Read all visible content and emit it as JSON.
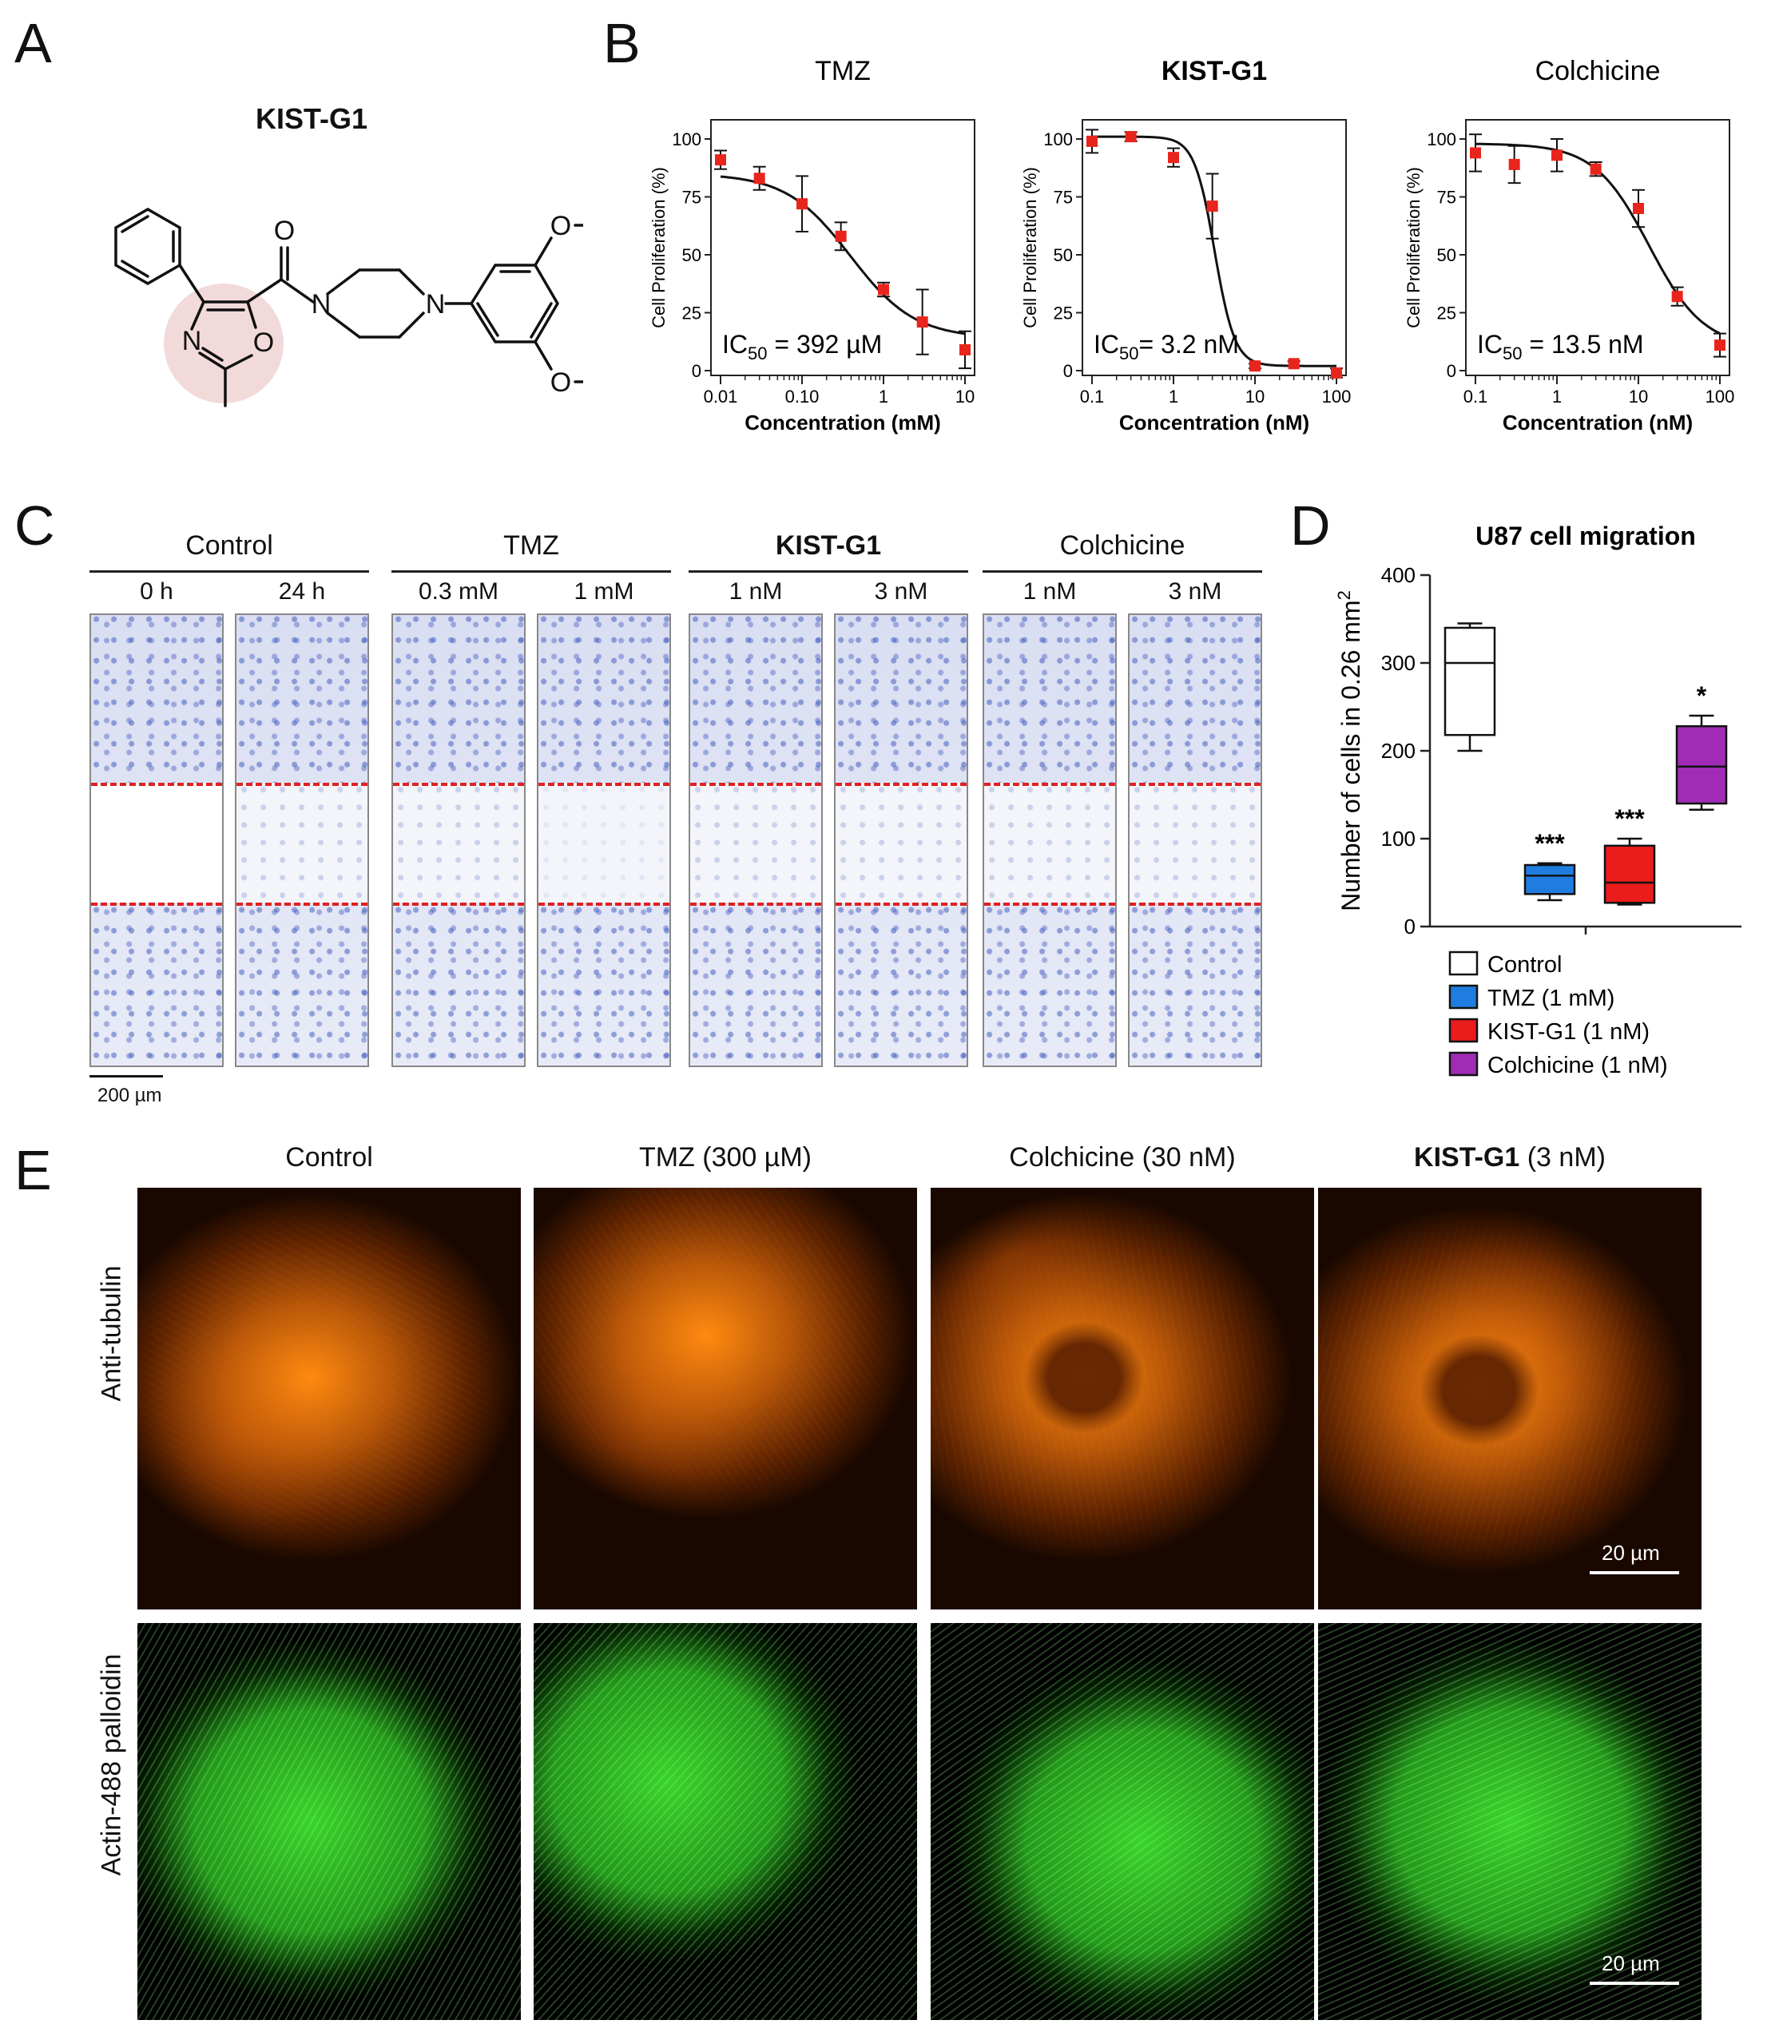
{
  "panels": {
    "A": "A",
    "B": "B",
    "C": "C",
    "D": "D",
    "E": "E"
  },
  "panelA": {
    "compound": "KIST-G1",
    "atoms": {
      "O_carbonyl": "O",
      "N_pip1": "N",
      "N_pip2": "N",
      "N_ox": "N",
      "O_ox": "O",
      "O_ome1": "O",
      "O_ome2": "O"
    }
  },
  "panelB": {
    "charts": [
      {
        "title": "TMZ",
        "title_bold": false,
        "ylabel": "Cell Proliferation (%)",
        "xlabel": "Concentration (mM)",
        "ic50_pre": "IC",
        "ic50_sub": "50",
        "ic50_post": " = 392 µM"
      },
      {
        "title": "KIST-G1",
        "title_bold": true,
        "ylabel": "Cell Proliferation (%)",
        "xlabel": "Concentration (nM)",
        "ic50_pre": "IC",
        "ic50_sub": "50",
        "ic50_post": "= 3.2 nM"
      },
      {
        "title": "Colchicine",
        "title_bold": false,
        "ylabel": "Cell Proliferation (%)",
        "xlabel": "Concentration (nM)",
        "ic50_pre": "IC",
        "ic50_sub": "50",
        "ic50_post": " = 13.5 nM"
      }
    ]
  },
  "panelC": {
    "groups": [
      {
        "label": "Control",
        "bold": false,
        "subs": [
          "0 h",
          "24 h"
        ]
      },
      {
        "label": "TMZ",
        "bold": false,
        "subs": [
          "0.3 mM",
          "1 mM"
        ]
      },
      {
        "label": "KIST-G1",
        "bold": true,
        "subs": [
          "1 nM",
          "3 nM"
        ]
      },
      {
        "label": "Colchicine",
        "bold": false,
        "subs": [
          "1 nM",
          "3 nM"
        ]
      }
    ],
    "scalebar": "200 µm"
  },
  "panelE": {
    "columns": [
      {
        "pre": "",
        "bold": "",
        "post": "Control"
      },
      {
        "pre": "",
        "bold": "",
        "post": "TMZ (300 µM)"
      },
      {
        "pre": "",
        "bold": "",
        "post": "Colchicine (30 nM)"
      },
      {
        "pre": "",
        "bold": "KIST-G1",
        "post": " (3 nM)"
      }
    ],
    "rows": [
      "Anti-tubulin",
      "Actin-488 palloidin"
    ],
    "scalebar": "20 µm",
    "colors": {
      "tubulin": "#ff8a10",
      "actin": "#3ad42a"
    }
  },
  "chart_data": [
    {
      "type": "scatter",
      "title": "TMZ",
      "xlabel": "Concentration (mM)",
      "ylabel": "Cell Proliferation (%)",
      "x_scale": "log",
      "xlim": [
        0.01,
        10
      ],
      "ylim": [
        0,
        100
      ],
      "x_ticks": [
        0.01,
        0.1,
        1,
        10
      ],
      "x_ticklabels": [
        "0.01",
        "0.10",
        "1",
        "10"
      ],
      "y_ticks": [
        0,
        25,
        50,
        75,
        100
      ],
      "x": [
        0.01,
        0.03,
        0.1,
        0.3,
        1,
        3,
        10
      ],
      "y": [
        91,
        83,
        72,
        58,
        35,
        21,
        9
      ],
      "err": [
        4,
        5,
        12,
        6,
        3,
        14,
        8
      ],
      "fit": {
        "top": 85,
        "bottom": 14,
        "ic50": 0.392,
        "hill": 1.1
      },
      "annotation": "IC50 = 392 µM",
      "color": "#e8251c"
    },
    {
      "type": "scatter",
      "title": "KIST-G1",
      "xlabel": "Concentration (nM)",
      "ylabel": "Cell Proliferation (%)",
      "x_scale": "log",
      "xlim": [
        0.1,
        100
      ],
      "ylim": [
        0,
        100
      ],
      "x_ticks": [
        0.1,
        1,
        10,
        100
      ],
      "x_ticklabels": [
        "0.1",
        "1",
        "10",
        "100"
      ],
      "y_ticks": [
        0,
        25,
        50,
        75,
        100
      ],
      "x": [
        0.1,
        0.3,
        1,
        3,
        10,
        30,
        100
      ],
      "y": [
        99,
        101,
        92,
        71,
        2,
        3,
        -1
      ],
      "err": [
        5,
        2,
        4,
        14,
        1,
        1,
        2
      ],
      "fit": {
        "top": 101,
        "bottom": 2,
        "ic50": 3.2,
        "hill": 3.5
      },
      "annotation": "IC50= 3.2 nM",
      "color": "#e8251c"
    },
    {
      "type": "scatter",
      "title": "Colchicine",
      "xlabel": "Concentration (nM)",
      "ylabel": "Cell Proliferation (%)",
      "x_scale": "log",
      "xlim": [
        0.1,
        100
      ],
      "ylim": [
        0,
        100
      ],
      "x_ticks": [
        0.1,
        1,
        10,
        100
      ],
      "x_ticklabels": [
        "0.1",
        "1",
        "10",
        "100"
      ],
      "y_ticks": [
        0,
        25,
        50,
        75,
        100
      ],
      "x": [
        0.1,
        0.3,
        1,
        3,
        10,
        30,
        100
      ],
      "y": [
        94,
        89,
        93,
        87,
        70,
        32,
        11
      ],
      "err": [
        8,
        8,
        7,
        3,
        8,
        4,
        5
      ],
      "fit": {
        "top": 98,
        "bottom": 10,
        "ic50": 13.5,
        "hill": 1.3
      },
      "annotation": "IC50 = 13.5 nM",
      "color": "#e8251c"
    },
    {
      "type": "box",
      "title": "U87 cell migration",
      "ylabel": "Number of cells in 0.26 mm2",
      "ylim": [
        0,
        400
      ],
      "y_ticks": [
        0,
        100,
        200,
        300,
        400
      ],
      "series": [
        {
          "name": "Control",
          "color": "#ffffff",
          "min": 200,
          "q1": 218,
          "median": 300,
          "q3": 340,
          "max": 345,
          "sig": ""
        },
        {
          "name": "TMZ (1 mM)",
          "color": "#1f7de0",
          "min": 30,
          "q1": 37,
          "median": 58,
          "q3": 70,
          "max": 72,
          "sig": "***"
        },
        {
          "name": "KIST-G1  (1 nM)",
          "color": "#ea1c1c",
          "min": 25,
          "q1": 27,
          "median": 50,
          "q3": 92,
          "max": 100,
          "sig": "***"
        },
        {
          "name": "Colchicine  (1 nM)",
          "color": "#a02cb6",
          "min": 133,
          "q1": 140,
          "median": 182,
          "q3": 228,
          "max": 240,
          "sig": "*"
        }
      ]
    }
  ]
}
